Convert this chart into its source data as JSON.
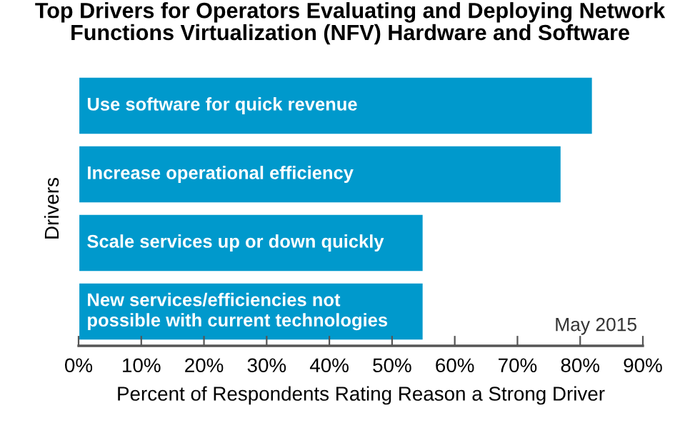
{
  "chart_data": {
    "type": "bar",
    "orientation": "horizontal",
    "title": "Top Drivers for Operators Evaluating and Deploying Network Functions Virtualization (NFV) Hardware and Software",
    "xlabel": "Percent of Respondents Rating Reason a Strong Driver",
    "ylabel": "Drivers",
    "categories": [
      "Use software for quick revenue",
      "Increase operational efficiency",
      "Scale services up or down quickly",
      "New services/efficiencies not possible with current technologies"
    ],
    "values": [
      82,
      77,
      55,
      55
    ],
    "color": "#0099cc",
    "xlim": [
      0,
      90
    ],
    "xticks": [
      {
        "value": 0,
        "label": "0%"
      },
      {
        "value": 10,
        "label": "10%"
      },
      {
        "value": 20,
        "label": "20%"
      },
      {
        "value": 30,
        "label": "30%"
      },
      {
        "value": 40,
        "label": "40%"
      },
      {
        "value": 50,
        "label": "50%"
      },
      {
        "value": 60,
        "label": "60%"
      },
      {
        "value": 70,
        "label": "70%"
      },
      {
        "value": 80,
        "label": "80%"
      },
      {
        "value": 90,
        "label": "90%"
      }
    ],
    "annotations": [
      "May 2015"
    ]
  }
}
